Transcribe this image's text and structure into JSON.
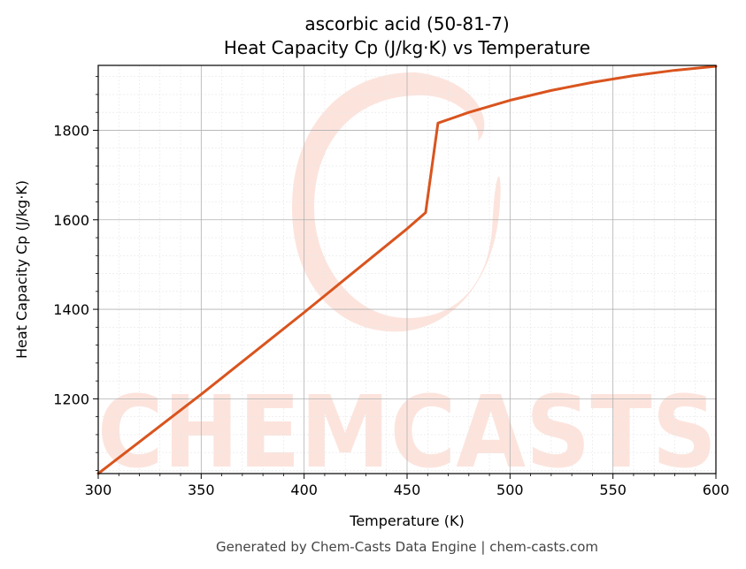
{
  "chart_data": {
    "type": "line",
    "title_line1": "ascorbic acid (50-81-7)",
    "title_line2": "Heat Capacity Cp (J/kg·K) vs Temperature",
    "xlabel": "Temperature (K)",
    "ylabel": "Heat Capacity Cp (J/kg·K)",
    "xlim": [
      300,
      600
    ],
    "ylim": [
      1033,
      1945
    ],
    "xticks": [
      300,
      350,
      400,
      450,
      500,
      550,
      600
    ],
    "yticks": [
      1200,
      1400,
      1600,
      1800
    ],
    "grid": true,
    "series": [
      {
        "color": "#d9541e",
        "points": [
          [
            300,
            1033
          ],
          [
            350,
            1210
          ],
          [
            400,
            1393
          ],
          [
            450,
            1580
          ],
          [
            459,
            1616
          ],
          [
            465,
            1816
          ],
          [
            480,
            1840
          ],
          [
            500,
            1867
          ],
          [
            520,
            1889
          ],
          [
            540,
            1907
          ],
          [
            560,
            1922
          ],
          [
            580,
            1934
          ],
          [
            600,
            1943
          ]
        ]
      }
    ]
  },
  "watermark": "CHEMCASTS",
  "footer": "Generated by Chem-Casts Data Engine | chem-casts.com"
}
